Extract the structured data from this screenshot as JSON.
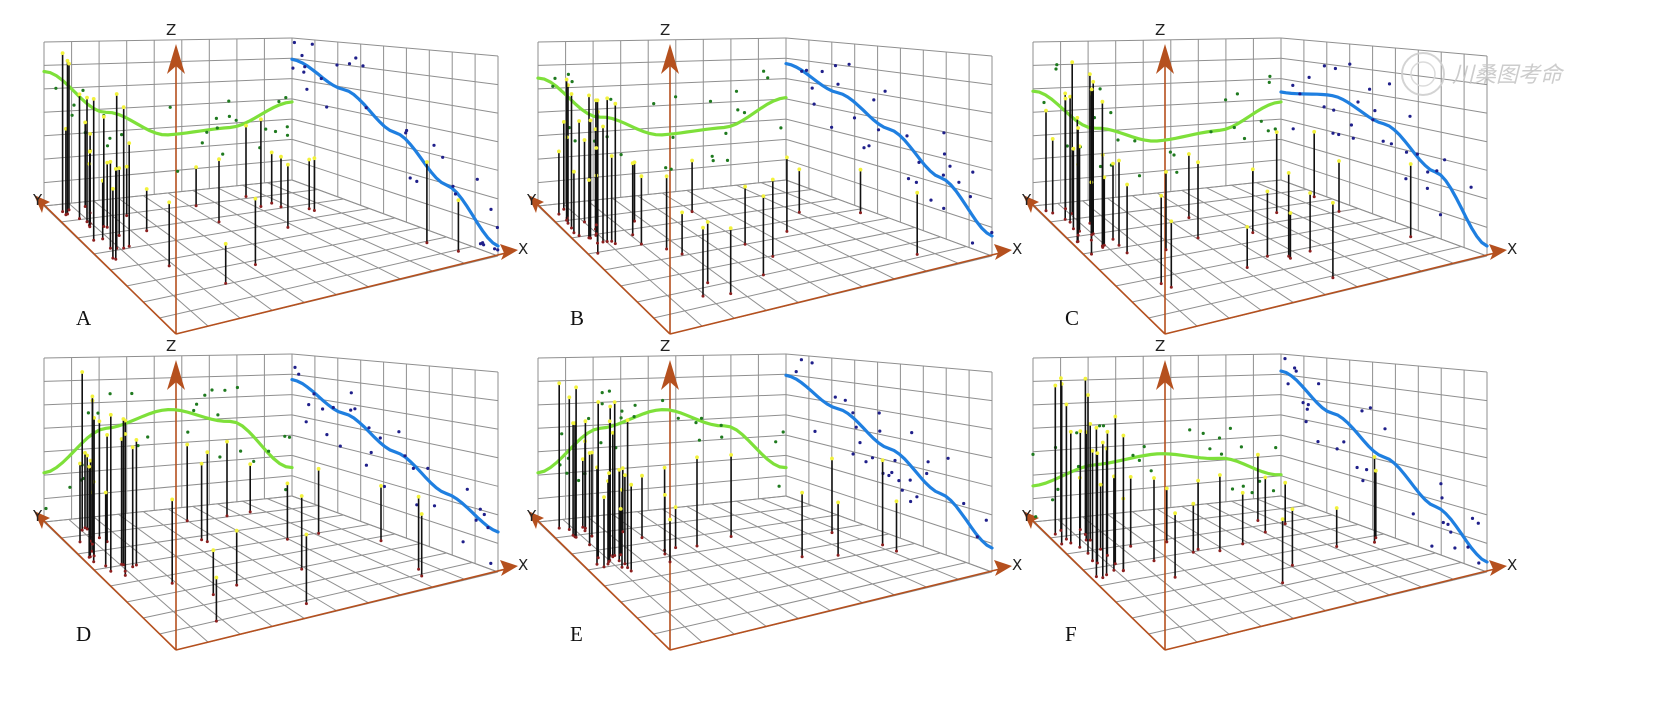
{
  "figure": {
    "panels": [
      "A",
      "B",
      "C",
      "D",
      "E",
      "F"
    ],
    "axis_labels": {
      "x": "X",
      "y": "Y",
      "z": "Z"
    },
    "watermark": "川桑图考命"
  },
  "colors": {
    "grid": "#8f8f8f",
    "axis": "#b5501e",
    "green_curve": "#7ee03a",
    "green_points": "#1f7a1f",
    "blue_curve": "#1f7fe0",
    "blue_points": "#1f1f8a",
    "stem": "#111111",
    "stem_top": "#f2f23c",
    "stem_base": "#8a1e1e"
  },
  "chart_data": [
    {
      "type": "scatter",
      "panel": "A",
      "green_curve_shape": "U-shaped (decreasing then rising)",
      "blue_curve_shape": "decreasing",
      "green_trend": [
        0.82,
        0.55,
        0.38,
        0.4,
        0.55
      ],
      "blue_trend": [
        0.85,
        0.7,
        0.5,
        0.28,
        0.05
      ]
    },
    {
      "type": "scatter",
      "panel": "B",
      "green_curve_shape": "U-shaped (decreasing then rising)",
      "blue_curve_shape": "decreasing",
      "green_trend": [
        0.78,
        0.52,
        0.38,
        0.4,
        0.58
      ],
      "blue_trend": [
        0.82,
        0.68,
        0.52,
        0.32,
        0.1
      ]
    },
    {
      "type": "scatter",
      "panel": "C",
      "green_curve_shape": "U-shaped (decreasing then rising)",
      "blue_curve_shape": "rising then falling",
      "green_trend": [
        0.7,
        0.45,
        0.34,
        0.38,
        0.55
      ],
      "blue_trend": [
        0.62,
        0.66,
        0.55,
        0.35,
        0.05
      ]
    },
    {
      "type": "scatter",
      "panel": "D",
      "green_curve_shape": "inverted U (rising then falling)",
      "blue_curve_shape": "decreasing",
      "green_trend": [
        0.3,
        0.55,
        0.65,
        0.55,
        0.2
      ],
      "blue_trend": [
        0.82,
        0.65,
        0.48,
        0.32,
        0.2
      ]
    },
    {
      "type": "scatter",
      "panel": "E",
      "green_curve_shape": "inverted U (rising then falling)",
      "blue_curve_shape": "decreasing",
      "green_trend": [
        0.3,
        0.55,
        0.65,
        0.52,
        0.2
      ],
      "blue_trend": [
        0.85,
        0.68,
        0.5,
        0.32,
        0.12
      ]
    },
    {
      "type": "scatter",
      "panel": "F",
      "green_curve_shape": "slight arch (flat then falling)",
      "blue_curve_shape": "decreasing",
      "green_trend": [
        0.22,
        0.32,
        0.36,
        0.3,
        0.15
      ],
      "blue_trend": [
        0.88,
        0.65,
        0.45,
        0.25,
        0.05
      ]
    }
  ]
}
